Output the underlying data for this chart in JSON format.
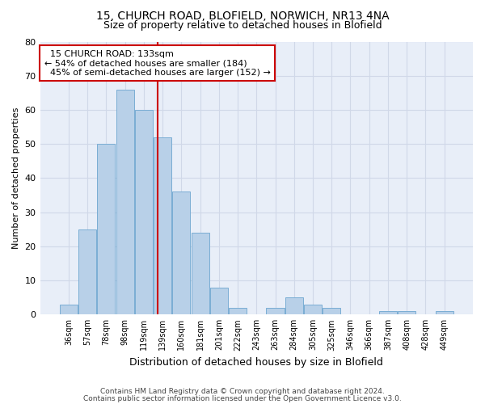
{
  "title_line1": "15, CHURCH ROAD, BLOFIELD, NORWICH, NR13 4NA",
  "title_line2": "Size of property relative to detached houses in Blofield",
  "xlabel": "Distribution of detached houses by size in Blofield",
  "ylabel": "Number of detached properties",
  "footnote1": "Contains HM Land Registry data © Crown copyright and database right 2024.",
  "footnote2": "Contains public sector information licensed under the Open Government Licence v3.0.",
  "bin_labels": [
    "36sqm",
    "57sqm",
    "78sqm",
    "98sqm",
    "119sqm",
    "139sqm",
    "160sqm",
    "181sqm",
    "201sqm",
    "222sqm",
    "243sqm",
    "263sqm",
    "284sqm",
    "305sqm",
    "325sqm",
    "346sqm",
    "366sqm",
    "387sqm",
    "408sqm",
    "428sqm",
    "449sqm"
  ],
  "bar_values": [
    3,
    25,
    50,
    66,
    60,
    52,
    36,
    24,
    8,
    2,
    0,
    2,
    5,
    3,
    2,
    0,
    0,
    1,
    1,
    0,
    1
  ],
  "bar_color": "#b8d0e8",
  "bar_edge_color": "#7aadd4",
  "vline_color": "#cc0000",
  "vline_x_index": 4.72,
  "annotation_text": "  15 CHURCH ROAD: 133sqm\n← 54% of detached houses are smaller (184)\n  45% of semi-detached houses are larger (152) →",
  "annotation_box_color": "white",
  "annotation_border_color": "#cc0000",
  "ylim": [
    0,
    80
  ],
  "yticks": [
    0,
    10,
    20,
    30,
    40,
    50,
    60,
    70,
    80
  ],
  "grid_color": "#d0d8e8",
  "background_color": "#e8eef8",
  "fig_width": 6.0,
  "fig_height": 5.0,
  "title1_fontsize": 10,
  "title2_fontsize": 9,
  "ylabel_fontsize": 8,
  "xlabel_fontsize": 9,
  "annotation_fontsize": 8,
  "footnote_fontsize": 6.5
}
